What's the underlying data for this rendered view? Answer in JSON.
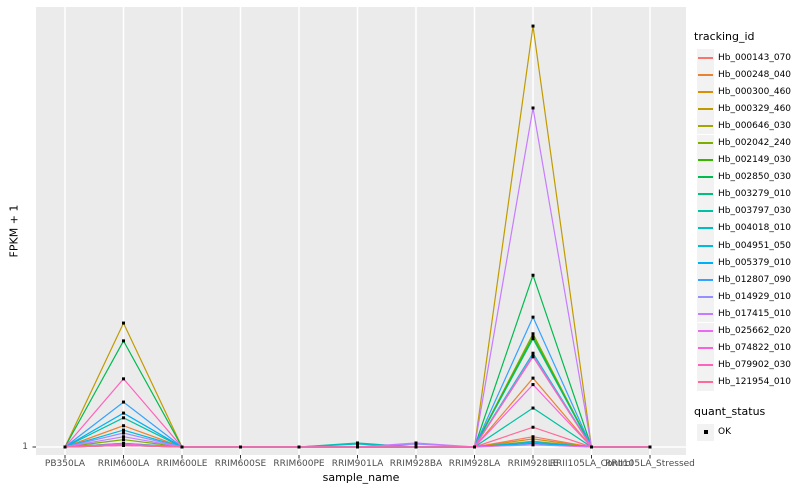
{
  "chart_data": {
    "type": "line",
    "title": "",
    "xlabel": "sample_name",
    "ylabel": "FPKM + 1",
    "y_scale": "log10",
    "y_tick_labels": [
      "1"
    ],
    "grid": "vertical-major-only",
    "legend_position": "right",
    "categories": [
      "PB350LA",
      "RRIM600LA",
      "RRIM600LE",
      "RRIM600SE",
      "RRIM600PE",
      "RRIM901LA",
      "RRIM928BA",
      "RRIM928LA",
      "RRIM928LE",
      "RRII105LA_Control",
      "RRII105LA_Stressed"
    ],
    "series": [
      {
        "name": "Hb_000143_070",
        "color": "#F8766D",
        "values": [
          1,
          1.05,
          1,
          1,
          1,
          1,
          1,
          1,
          1.38,
          1,
          1
        ]
      },
      {
        "name": "Hb_000248_040",
        "color": "#EA8331",
        "values": [
          1,
          1.95,
          1,
          1,
          1,
          1,
          1,
          1,
          8.7,
          1,
          1
        ]
      },
      {
        "name": "Hb_000300_460",
        "color": "#D89000",
        "values": [
          1,
          1.12,
          1,
          1,
          1,
          1,
          1,
          1,
          1.29,
          1,
          1
        ]
      },
      {
        "name": "Hb_000329_460",
        "color": "#C09B00",
        "values": [
          1,
          49,
          1,
          1,
          1,
          1,
          1,
          1,
          550000,
          1,
          1
        ]
      },
      {
        "name": "Hb_000646_030",
        "color": "#A3A500",
        "values": [
          1,
          1.05,
          1,
          1,
          1,
          1,
          1,
          1,
          1.2,
          1,
          1
        ]
      },
      {
        "name": "Hb_002042_240",
        "color": "#7CAE00",
        "values": [
          1,
          1.26,
          1,
          1,
          1,
          1,
          1,
          1,
          35,
          1,
          1
        ]
      },
      {
        "name": "Hb_002149_030",
        "color": "#39B600",
        "values": [
          1,
          1.1,
          1,
          1,
          1,
          1,
          1,
          1,
          32,
          1,
          1
        ]
      },
      {
        "name": "Hb_002850_030",
        "color": "#00BB4E",
        "values": [
          1,
          28,
          1,
          1,
          1,
          1,
          1,
          1,
          220,
          1,
          1
        ]
      },
      {
        "name": "Hb_003279_010",
        "color": "#00BF7D",
        "values": [
          1,
          1.07,
          1,
          1,
          1,
          1,
          1,
          1,
          30,
          1,
          1
        ]
      },
      {
        "name": "Hb_003797_030",
        "color": "#00C1A3",
        "values": [
          1,
          2.5,
          1,
          1,
          1,
          1.135,
          1,
          1,
          3.4,
          1,
          1
        ]
      },
      {
        "name": "Hb_004018_010",
        "color": "#00BFC4",
        "values": [
          1,
          1.12,
          1,
          1,
          1,
          1.1,
          1,
          1,
          19,
          1,
          1
        ]
      },
      {
        "name": "Hb_004951_050",
        "color": "#00BBDA",
        "values": [
          1,
          1.7,
          1,
          1,
          1,
          1,
          1,
          1,
          1.17,
          1,
          1
        ]
      },
      {
        "name": "Hb_005379_010",
        "color": "#00B0F6",
        "values": [
          1,
          2.9,
          1,
          1,
          1,
          1,
          1,
          1,
          1.12,
          1,
          1
        ]
      },
      {
        "name": "Hb_012807_090",
        "color": "#35A2FF",
        "values": [
          1,
          4.1,
          1,
          1,
          1,
          1,
          1,
          1,
          59,
          1,
          1
        ]
      },
      {
        "name": "Hb_014929_010",
        "color": "#9590FF",
        "values": [
          1,
          1.55,
          1,
          1,
          1,
          1,
          1.1,
          1,
          18,
          1,
          1
        ]
      },
      {
        "name": "Hb_017415_010",
        "color": "#C77CFF",
        "values": [
          1,
          1.38,
          1,
          1,
          1,
          1,
          1.135,
          1,
          42000,
          1,
          1
        ]
      },
      {
        "name": "Hb_025662_020",
        "color": "#E76BF3",
        "values": [
          1,
          1.05,
          1,
          1,
          1,
          1,
          1,
          1,
          1.07,
          1,
          1
        ]
      },
      {
        "name": "Hb_074822_010",
        "color": "#FA62DB",
        "values": [
          1,
          1.1,
          1,
          1,
          1,
          1,
          1,
          1,
          7.1,
          1,
          1
        ]
      },
      {
        "name": "Hb_079902_030",
        "color": "#FF62BC",
        "values": [
          1,
          8.5,
          1,
          1,
          1,
          1,
          1,
          1,
          17,
          1,
          1
        ]
      },
      {
        "name": "Hb_121954_010",
        "color": "#FF6A98",
        "values": [
          1,
          1.05,
          1,
          1,
          1,
          1,
          1,
          1,
          1.86,
          1,
          1
        ]
      }
    ],
    "legend": {
      "tracking_id_title": "tracking_id",
      "quant_status_title": "quant_status",
      "quant_status_items": [
        {
          "label": "OK"
        }
      ]
    }
  },
  "colors": {
    "background": "#FFFFFF",
    "panel_bg": "#EBEBEB",
    "grid": "#FFFFFF",
    "tick": "#333333",
    "tick_label": "#4D4D4D",
    "point": "#000000",
    "legend_key_bg": "#F2F2F2"
  }
}
